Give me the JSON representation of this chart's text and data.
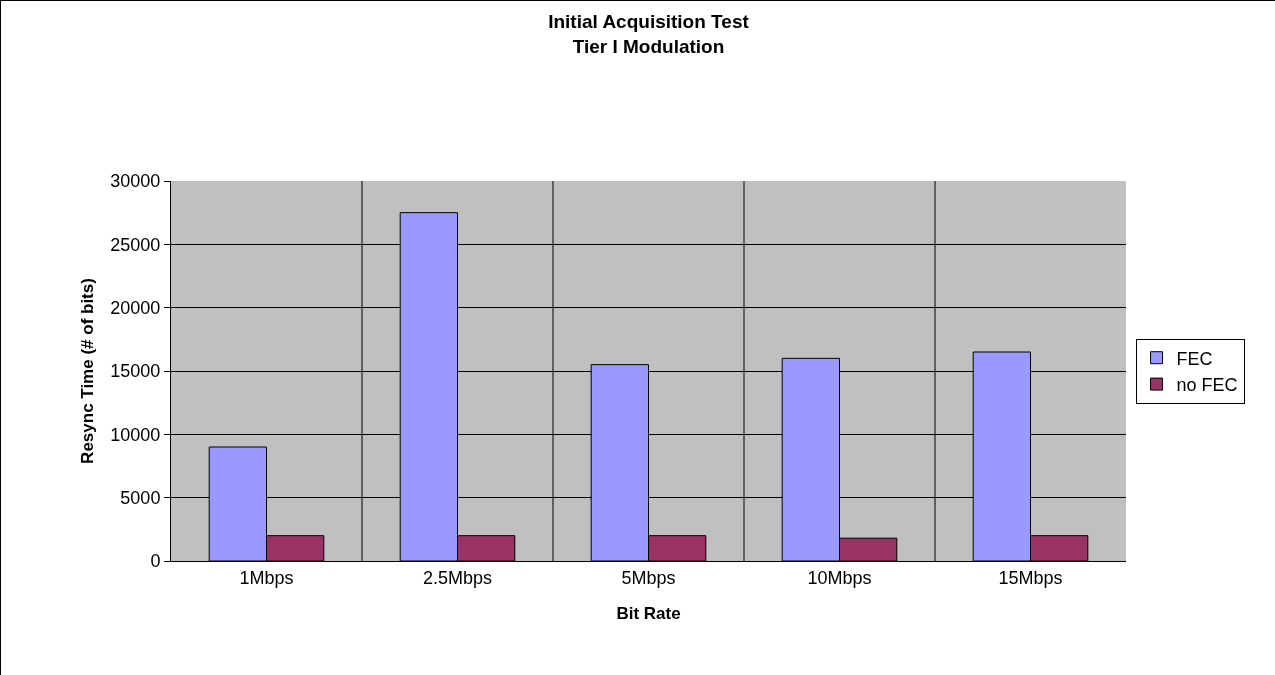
{
  "chart_data": {
    "type": "bar",
    "title": "Initial Acquisition Test\nTier I Modulation",
    "xlabel": "Bit Rate",
    "ylabel": "Resync Time (# of bits)",
    "categories": [
      "1Mbps",
      "2.5Mbps",
      "5Mbps",
      "10Mbps",
      "15Mbps"
    ],
    "series": [
      {
        "name": "FEC",
        "color": "#9999ff",
        "values": [
          9000,
          27500,
          15500,
          16000,
          16500
        ]
      },
      {
        "name": "no FEC",
        "color": "#993366",
        "values": [
          2000,
          2000,
          2000,
          1800,
          2000
        ]
      }
    ],
    "ylim": [
      0,
      30000
    ],
    "yticks": [
      0,
      5000,
      10000,
      15000,
      20000,
      25000,
      30000
    ],
    "grid": true,
    "legend": "right"
  }
}
